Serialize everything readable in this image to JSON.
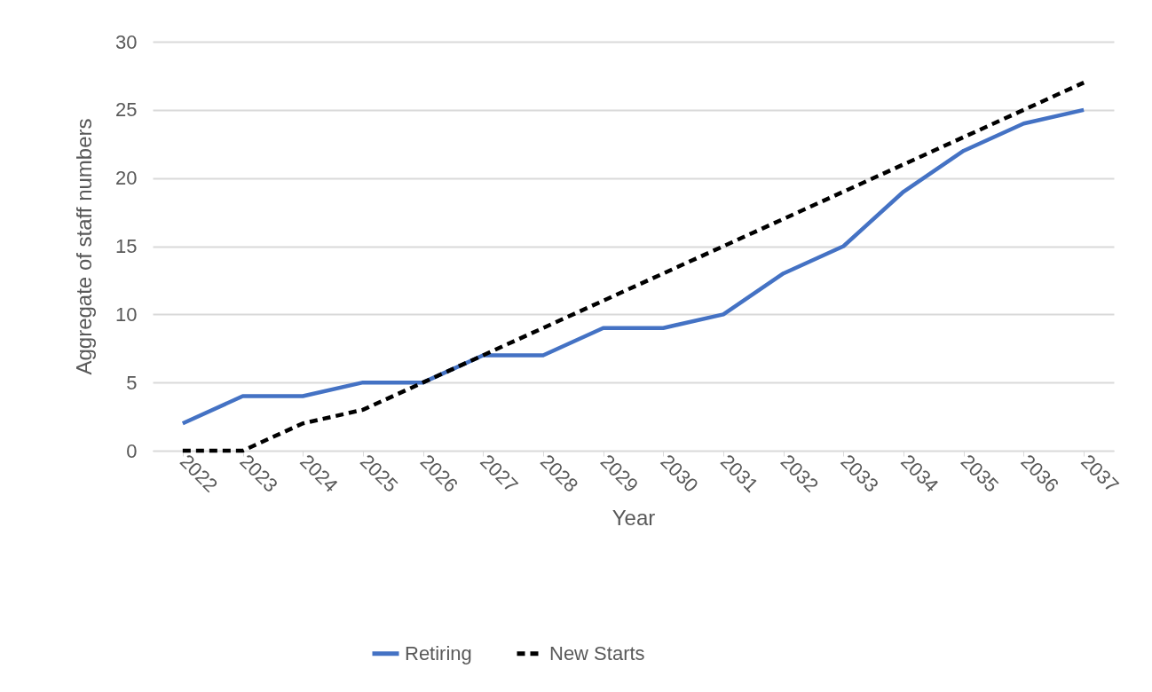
{
  "chart_data": {
    "type": "line",
    "xlabel": "Year",
    "ylabel": "Aggregate of staff numbers",
    "categories": [
      "2022",
      "2023",
      "2024",
      "2025",
      "2026",
      "2027",
      "2028",
      "2029",
      "2030",
      "2031",
      "2032",
      "2033",
      "2034",
      "2035",
      "2036",
      "2037"
    ],
    "series": [
      {
        "name": "Retiring",
        "color": "#4472c4",
        "line_style": "solid",
        "values": [
          2,
          4,
          4,
          5,
          5,
          7,
          7,
          9,
          9,
          10,
          13,
          15,
          19,
          22,
          24,
          25
        ]
      },
      {
        "name": "New Starts",
        "color": "#000000",
        "line_style": "dashed",
        "values": [
          0,
          0,
          2,
          3,
          5,
          7,
          9,
          11,
          13,
          15,
          17,
          19,
          21,
          23,
          25,
          27
        ]
      }
    ],
    "ylim": [
      0,
      30
    ],
    "yticks": [
      0,
      5,
      10,
      15,
      20,
      25,
      30
    ],
    "grid": "y",
    "legend": "bottom",
    "marker": "none"
  }
}
